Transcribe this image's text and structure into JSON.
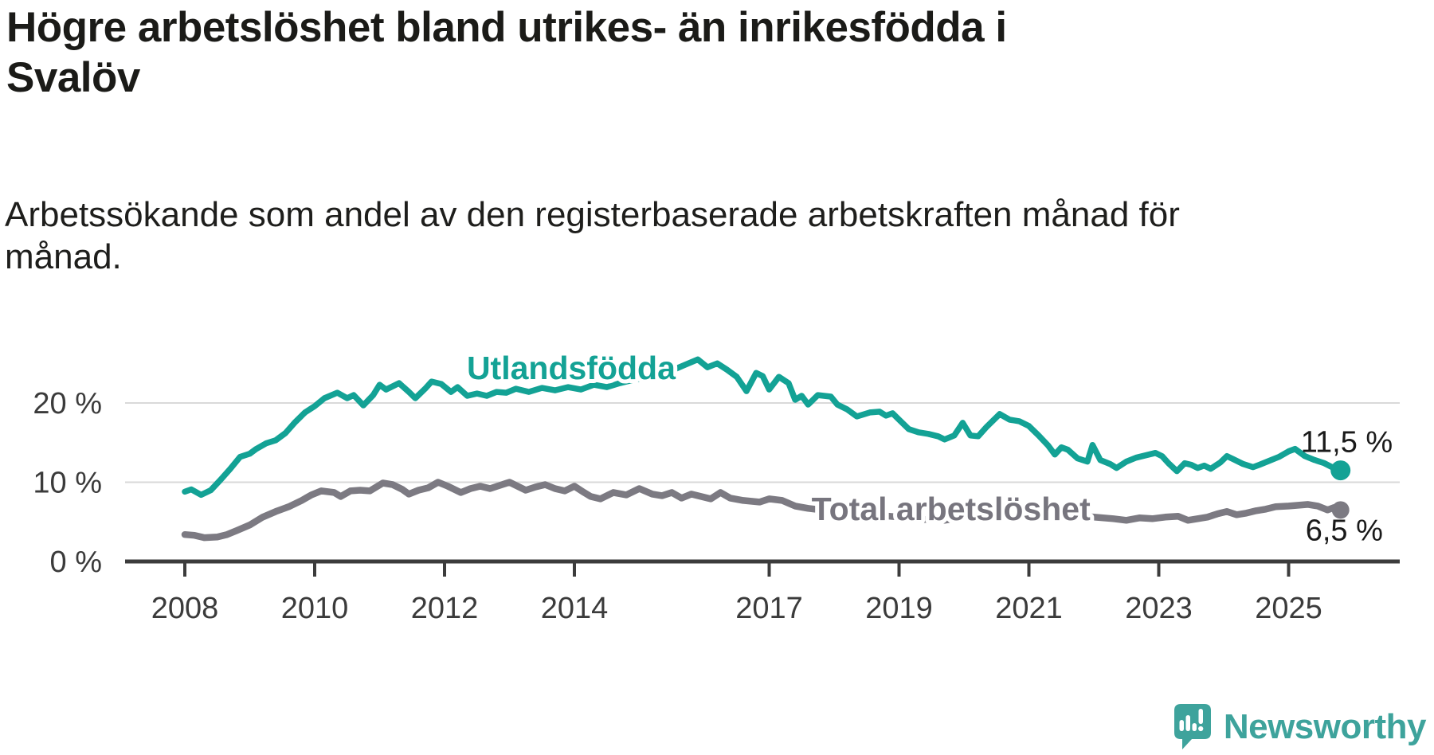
{
  "header": {
    "title_line1": "Högre arbetslöshet bland utrikes- än inrikesfödda i",
    "title_line2": "Svalöv",
    "subtitle_line1": "Arbetssökande som andel av den registerbaserade arbetskraften månad för",
    "subtitle_line2": "månad."
  },
  "footer": {
    "brand": "Newsworthy"
  },
  "colors": {
    "teal_line": "#13a295",
    "gray_line": "#7c7a82",
    "gray_label": "#77757e",
    "grid": "#d9d9d9",
    "axis": "#3c3c3c",
    "tick_text": "#3b3b3b",
    "value_label_text": "#1a1a1a",
    "title_text": "#1b1b18",
    "logo_teal": "#3ea39c"
  },
  "chart_data": {
    "type": "line",
    "title": "Högre arbetslöshet bland utrikes- än inrikesfödda i Svalöv",
    "subtitle": "Arbetssökande som andel av den registerbaserade arbetskraften månad för månad.",
    "unit": "%",
    "grid": true,
    "legend_position": "inline",
    "x_axis": {
      "ticks": [
        2008,
        2010,
        2012,
        2014,
        2017,
        2019,
        2021,
        2023,
        2025
      ],
      "tick_labels": [
        "2008",
        "2010",
        "2012",
        "2014",
        "2017",
        "2019",
        "2021",
        "2023",
        "2025"
      ],
      "range": [
        2007.1,
        2026.8
      ]
    },
    "y_axis": {
      "ticks": [
        {
          "value": 0,
          "label": "0 %"
        },
        {
          "value": 10,
          "label": "10 %"
        },
        {
          "value": 20,
          "label": "20 %"
        }
      ],
      "range": [
        0,
        26
      ]
    },
    "series": [
      {
        "name": "Utlandsfödda",
        "color": "#13a295",
        "end_label": "11,5 %",
        "last_value": 11.5,
        "inline_label": {
          "text": "Utlandsfödda",
          "x": 2013.95,
          "y": 24.4
        },
        "points": [
          [
            2008.0,
            8.8
          ],
          [
            2008.1,
            9.1
          ],
          [
            2008.25,
            8.4
          ],
          [
            2008.4,
            9.0
          ],
          [
            2008.55,
            10.3
          ],
          [
            2008.7,
            11.7
          ],
          [
            2008.85,
            13.2
          ],
          [
            2009.0,
            13.6
          ],
          [
            2009.1,
            14.2
          ],
          [
            2009.25,
            14.9
          ],
          [
            2009.4,
            15.3
          ],
          [
            2009.55,
            16.2
          ],
          [
            2009.7,
            17.6
          ],
          [
            2009.85,
            18.8
          ],
          [
            2010.0,
            19.6
          ],
          [
            2010.15,
            20.6
          ],
          [
            2010.35,
            21.3
          ],
          [
            2010.5,
            20.6
          ],
          [
            2010.6,
            21.0
          ],
          [
            2010.75,
            19.7
          ],
          [
            2010.9,
            21.0
          ],
          [
            2011.0,
            22.3
          ],
          [
            2011.1,
            21.7
          ],
          [
            2011.3,
            22.5
          ],
          [
            2011.45,
            21.4
          ],
          [
            2011.55,
            20.6
          ],
          [
            2011.7,
            21.8
          ],
          [
            2011.8,
            22.7
          ],
          [
            2011.95,
            22.4
          ],
          [
            2012.1,
            21.4
          ],
          [
            2012.2,
            22.0
          ],
          [
            2012.35,
            20.9
          ],
          [
            2012.5,
            21.2
          ],
          [
            2012.65,
            20.9
          ],
          [
            2012.8,
            21.4
          ],
          [
            2012.95,
            21.3
          ],
          [
            2013.1,
            21.8
          ],
          [
            2013.3,
            21.4
          ],
          [
            2013.5,
            21.9
          ],
          [
            2013.7,
            21.6
          ],
          [
            2013.9,
            22.0
          ],
          [
            2014.1,
            21.7
          ],
          [
            2014.3,
            22.3
          ],
          [
            2014.5,
            22.0
          ],
          [
            2014.7,
            22.5
          ],
          [
            2014.9,
            22.9
          ],
          [
            2015.1,
            23.2
          ],
          [
            2015.3,
            23.6
          ],
          [
            2015.5,
            24.1
          ],
          [
            2015.7,
            24.8
          ],
          [
            2015.9,
            25.5
          ],
          [
            2016.05,
            24.5
          ],
          [
            2016.2,
            25.0
          ],
          [
            2016.35,
            24.2
          ],
          [
            2016.5,
            23.3
          ],
          [
            2016.65,
            21.5
          ],
          [
            2016.8,
            23.8
          ],
          [
            2016.9,
            23.4
          ],
          [
            2017.0,
            21.7
          ],
          [
            2017.15,
            23.3
          ],
          [
            2017.3,
            22.5
          ],
          [
            2017.4,
            20.4
          ],
          [
            2017.5,
            20.9
          ],
          [
            2017.6,
            19.8
          ],
          [
            2017.75,
            21.0
          ],
          [
            2017.95,
            20.8
          ],
          [
            2018.05,
            19.8
          ],
          [
            2018.2,
            19.2
          ],
          [
            2018.35,
            18.3
          ],
          [
            2018.55,
            18.8
          ],
          [
            2018.7,
            18.9
          ],
          [
            2018.8,
            18.4
          ],
          [
            2018.9,
            18.7
          ],
          [
            2019.0,
            17.9
          ],
          [
            2019.15,
            16.7
          ],
          [
            2019.3,
            16.3
          ],
          [
            2019.45,
            16.1
          ],
          [
            2019.6,
            15.8
          ],
          [
            2019.7,
            15.4
          ],
          [
            2019.85,
            15.9
          ],
          [
            2019.98,
            17.5
          ],
          [
            2020.1,
            15.9
          ],
          [
            2020.22,
            15.8
          ],
          [
            2020.35,
            17.0
          ],
          [
            2020.55,
            18.6
          ],
          [
            2020.7,
            17.9
          ],
          [
            2020.85,
            17.7
          ],
          [
            2021.0,
            17.1
          ],
          [
            2021.15,
            15.9
          ],
          [
            2021.3,
            14.6
          ],
          [
            2021.4,
            13.5
          ],
          [
            2021.5,
            14.4
          ],
          [
            2021.6,
            14.1
          ],
          [
            2021.75,
            13.0
          ],
          [
            2021.9,
            12.6
          ],
          [
            2021.98,
            14.7
          ],
          [
            2022.1,
            12.8
          ],
          [
            2022.25,
            12.3
          ],
          [
            2022.35,
            11.8
          ],
          [
            2022.5,
            12.6
          ],
          [
            2022.65,
            13.1
          ],
          [
            2022.8,
            13.4
          ],
          [
            2022.95,
            13.7
          ],
          [
            2023.05,
            13.3
          ],
          [
            2023.15,
            12.4
          ],
          [
            2023.28,
            11.4
          ],
          [
            2023.4,
            12.4
          ],
          [
            2023.5,
            12.2
          ],
          [
            2023.6,
            11.8
          ],
          [
            2023.7,
            12.1
          ],
          [
            2023.8,
            11.7
          ],
          [
            2023.95,
            12.5
          ],
          [
            2024.05,
            13.3
          ],
          [
            2024.15,
            12.9
          ],
          [
            2024.3,
            12.3
          ],
          [
            2024.45,
            11.9
          ],
          [
            2024.55,
            12.2
          ],
          [
            2024.7,
            12.7
          ],
          [
            2024.85,
            13.2
          ],
          [
            2025.0,
            13.9
          ],
          [
            2025.1,
            14.2
          ],
          [
            2025.25,
            13.3
          ],
          [
            2025.4,
            12.8
          ],
          [
            2025.55,
            12.4
          ],
          [
            2025.67,
            11.9
          ],
          [
            2025.8,
            11.5
          ]
        ]
      },
      {
        "name": "Total arbetslöshet",
        "color": "#7c7a82",
        "end_label": "6,5 %",
        "last_value": 6.5,
        "inline_label": {
          "text": "Total arbetslöshet",
          "x": 2019.8,
          "y": 6.65
        },
        "points": [
          [
            2008.0,
            3.4
          ],
          [
            2008.15,
            3.3
          ],
          [
            2008.3,
            3.0
          ],
          [
            2008.5,
            3.1
          ],
          [
            2008.65,
            3.4
          ],
          [
            2008.8,
            3.9
          ],
          [
            2009.0,
            4.6
          ],
          [
            2009.2,
            5.6
          ],
          [
            2009.4,
            6.3
          ],
          [
            2009.6,
            6.9
          ],
          [
            2009.8,
            7.7
          ],
          [
            2009.95,
            8.4
          ],
          [
            2010.1,
            8.9
          ],
          [
            2010.3,
            8.7
          ],
          [
            2010.4,
            8.2
          ],
          [
            2010.55,
            8.9
          ],
          [
            2010.7,
            9.0
          ],
          [
            2010.85,
            8.9
          ],
          [
            2011.05,
            9.9
          ],
          [
            2011.2,
            9.7
          ],
          [
            2011.35,
            9.1
          ],
          [
            2011.45,
            8.5
          ],
          [
            2011.6,
            9.0
          ],
          [
            2011.75,
            9.3
          ],
          [
            2011.9,
            10.0
          ],
          [
            2012.05,
            9.5
          ],
          [
            2012.25,
            8.7
          ],
          [
            2012.4,
            9.2
          ],
          [
            2012.55,
            9.5
          ],
          [
            2012.7,
            9.2
          ],
          [
            2012.85,
            9.6
          ],
          [
            2013.0,
            10.0
          ],
          [
            2013.15,
            9.4
          ],
          [
            2013.25,
            9.0
          ],
          [
            2013.4,
            9.4
          ],
          [
            2013.55,
            9.7
          ],
          [
            2013.7,
            9.2
          ],
          [
            2013.85,
            8.9
          ],
          [
            2014.0,
            9.5
          ],
          [
            2014.15,
            8.7
          ],
          [
            2014.25,
            8.2
          ],
          [
            2014.4,
            7.9
          ],
          [
            2014.6,
            8.7
          ],
          [
            2014.8,
            8.4
          ],
          [
            2015.0,
            9.2
          ],
          [
            2015.2,
            8.5
          ],
          [
            2015.35,
            8.3
          ],
          [
            2015.5,
            8.7
          ],
          [
            2015.65,
            8.0
          ],
          [
            2015.8,
            8.5
          ],
          [
            2015.95,
            8.2
          ],
          [
            2016.1,
            7.9
          ],
          [
            2016.25,
            8.7
          ],
          [
            2016.4,
            8.0
          ],
          [
            2016.6,
            7.7
          ],
          [
            2016.85,
            7.5
          ],
          [
            2017.0,
            7.9
          ],
          [
            2017.2,
            7.7
          ],
          [
            2017.4,
            7.0
          ],
          [
            2017.6,
            6.7
          ],
          [
            2017.8,
            6.5
          ],
          [
            2018.0,
            6.4
          ],
          [
            2018.3,
            6.1
          ],
          [
            2018.6,
            5.9
          ],
          [
            2019.0,
            5.6
          ],
          [
            2019.4,
            5.3
          ],
          [
            2019.7,
            5.2
          ],
          [
            2020.0,
            5.6
          ],
          [
            2020.3,
            6.3
          ],
          [
            2020.55,
            6.7
          ],
          [
            2020.8,
            6.5
          ],
          [
            2021.0,
            6.3
          ],
          [
            2021.3,
            6.1
          ],
          [
            2021.6,
            5.8
          ],
          [
            2022.0,
            5.6
          ],
          [
            2022.3,
            5.4
          ],
          [
            2022.5,
            5.2
          ],
          [
            2022.7,
            5.5
          ],
          [
            2022.9,
            5.4
          ],
          [
            2023.1,
            5.6
          ],
          [
            2023.3,
            5.7
          ],
          [
            2023.45,
            5.2
          ],
          [
            2023.6,
            5.4
          ],
          [
            2023.75,
            5.6
          ],
          [
            2023.9,
            6.0
          ],
          [
            2024.05,
            6.3
          ],
          [
            2024.2,
            5.9
          ],
          [
            2024.35,
            6.1
          ],
          [
            2024.5,
            6.4
          ],
          [
            2024.65,
            6.6
          ],
          [
            2024.8,
            6.9
          ],
          [
            2025.0,
            7.0
          ],
          [
            2025.15,
            7.1
          ],
          [
            2025.3,
            7.2
          ],
          [
            2025.45,
            7.0
          ],
          [
            2025.6,
            6.5
          ],
          [
            2025.7,
            6.8
          ],
          [
            2025.8,
            6.5
          ]
        ]
      }
    ]
  }
}
